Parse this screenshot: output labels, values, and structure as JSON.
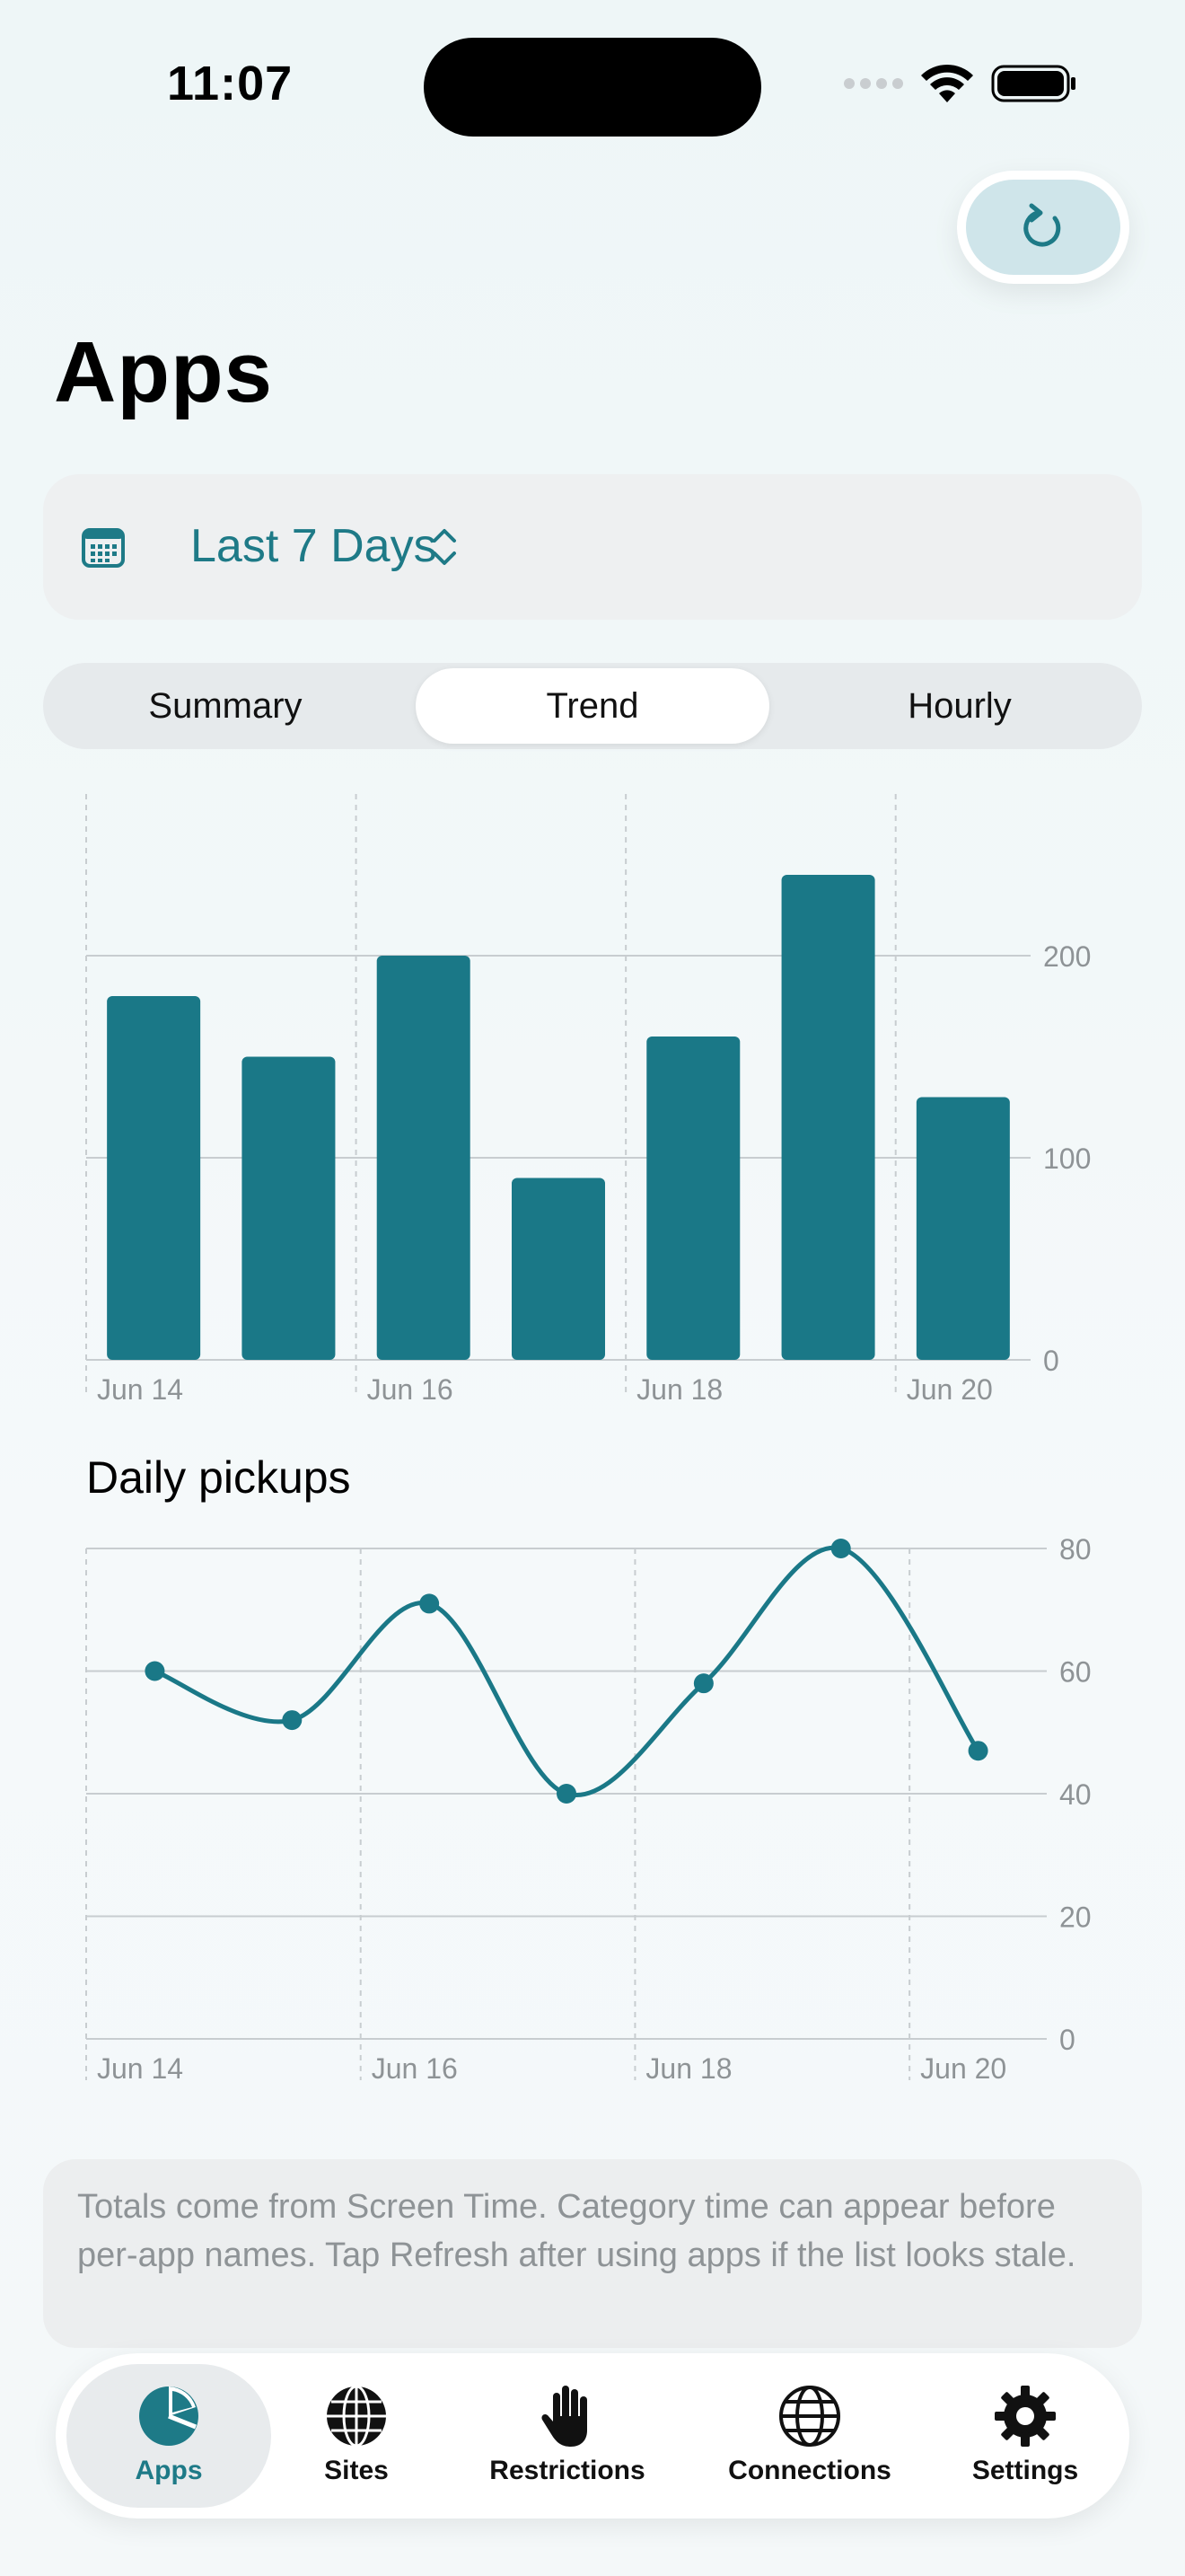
{
  "status": {
    "time": "11:07"
  },
  "page": {
    "title": "Apps"
  },
  "range": {
    "label": "Last 7 Days",
    "icon": "calendar-icon"
  },
  "segments": [
    {
      "label": "Summary",
      "active": false
    },
    {
      "label": "Trend",
      "active": true
    },
    {
      "label": "Hourly",
      "active": false
    }
  ],
  "chart_data": [
    {
      "type": "bar",
      "categories": [
        "Jun 14",
        "Jun 15",
        "Jun 16",
        "Jun 17",
        "Jun 18",
        "Jun 19",
        "Jun 20"
      ],
      "x_tick_labels": [
        "Jun 14",
        "Jun 16",
        "Jun 18",
        "Jun 20"
      ],
      "values": [
        180,
        150,
        200,
        90,
        160,
        240,
        130
      ],
      "y_ticks": [
        0,
        100,
        200
      ],
      "ylim": [
        0,
        280
      ],
      "color": "#1a7887",
      "grid": true
    },
    {
      "type": "line",
      "title": "Daily pickups",
      "categories": [
        "Jun 14",
        "Jun 15",
        "Jun 16",
        "Jun 17",
        "Jun 18",
        "Jun 19",
        "Jun 20"
      ],
      "x_tick_labels": [
        "Jun 14",
        "Jun 16",
        "Jun 18",
        "Jun 20"
      ],
      "values": [
        60,
        52,
        71,
        40,
        58,
        80,
        47
      ],
      "y_ticks": [
        0,
        20,
        40,
        60,
        80
      ],
      "ylim": [
        0,
        80
      ],
      "color": "#1a7887",
      "grid": true
    }
  ],
  "note": {
    "text": "Totals come from Screen Time. Category time can appear before per-app names. Tap Refresh after using apps if the list looks stale."
  },
  "tabs": [
    {
      "label": "Apps",
      "icon": "pie-chart-icon",
      "active": true
    },
    {
      "label": "Sites",
      "icon": "globe-icon",
      "active": false
    },
    {
      "label": "Restrictions",
      "icon": "hand-icon",
      "active": false
    },
    {
      "label": "Connections",
      "icon": "network-globe-icon",
      "active": false
    },
    {
      "label": "Settings",
      "icon": "gear-icon",
      "active": false
    }
  ],
  "colors": {
    "accent": "#1e7a87",
    "bar": "#1a7887",
    "background": "#f2f8f9"
  }
}
